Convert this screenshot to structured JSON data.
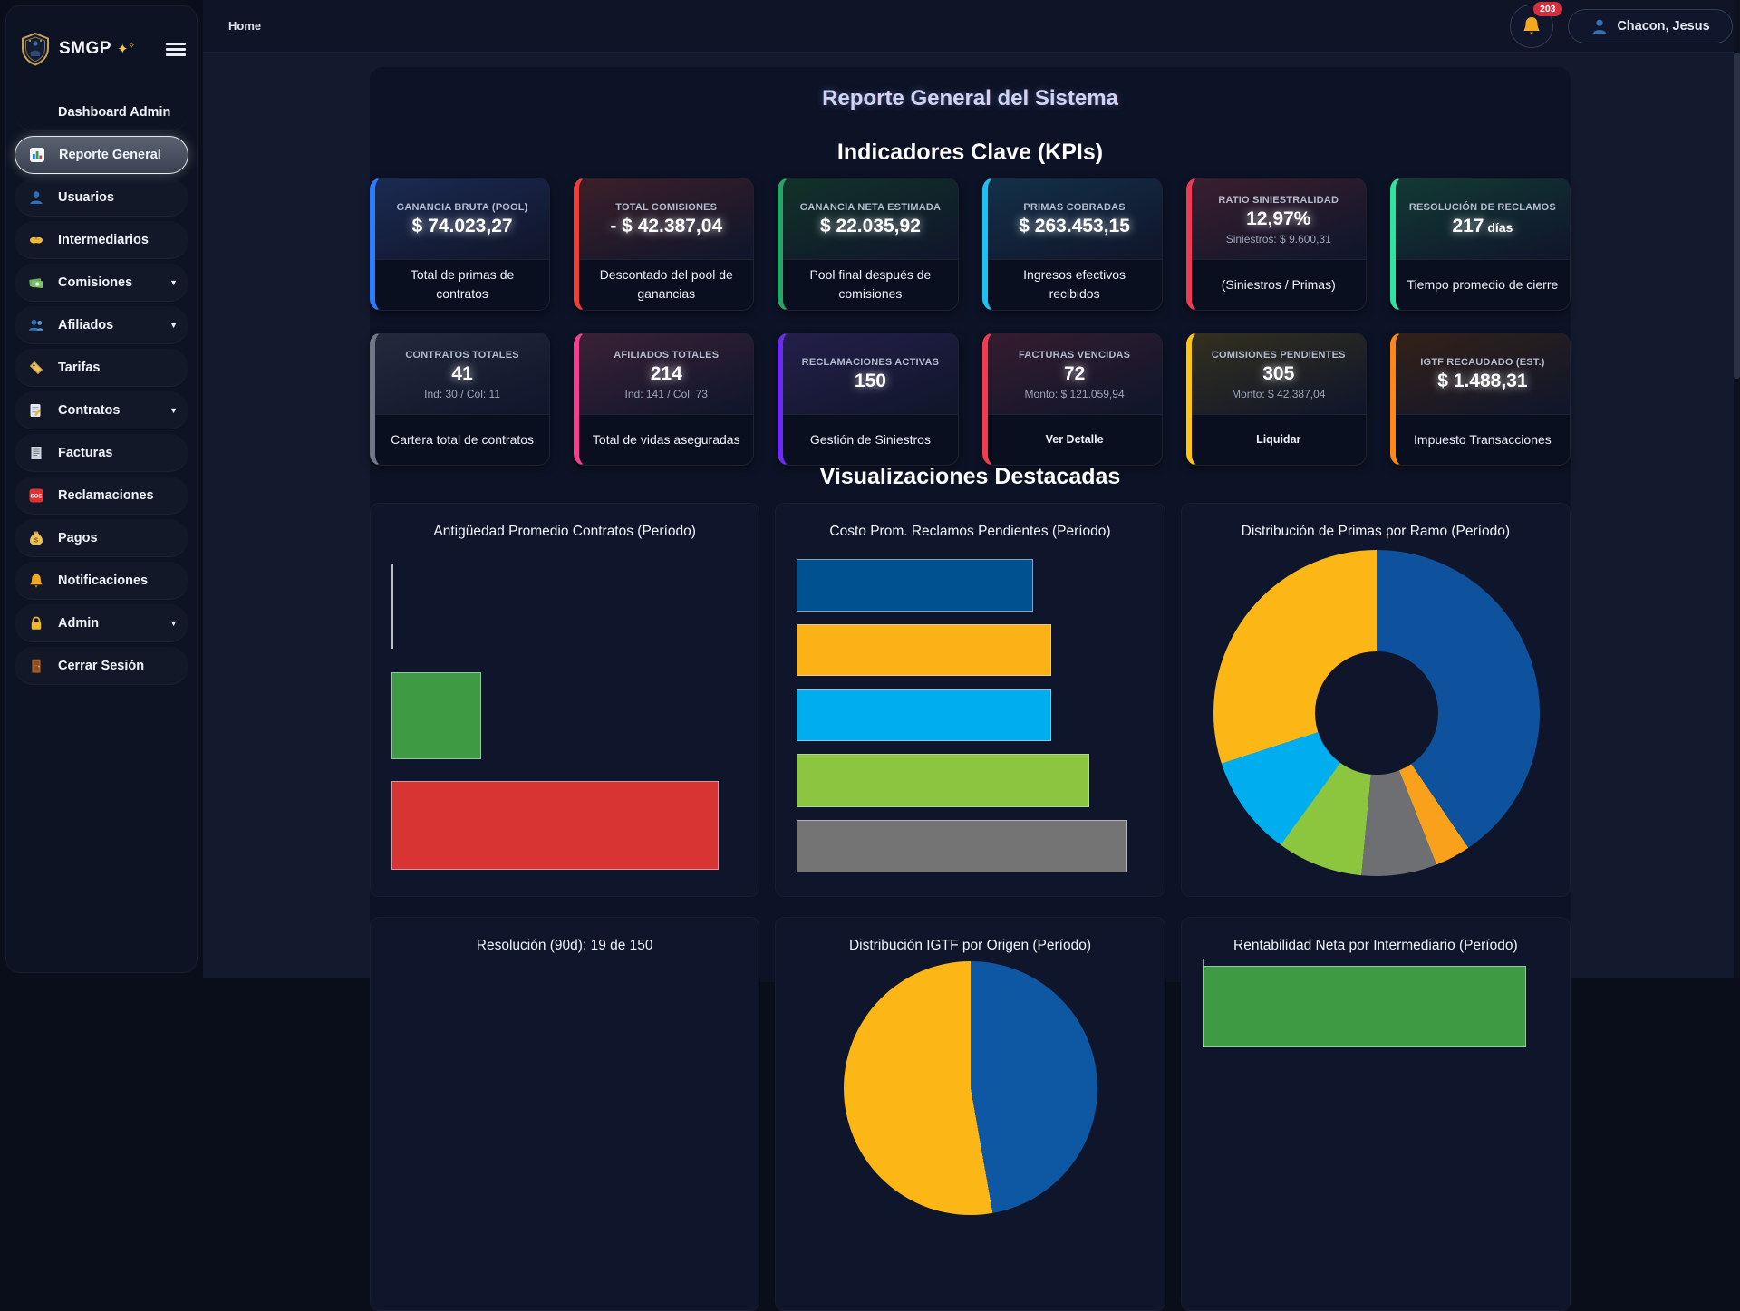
{
  "app": {
    "name": "SMGP",
    "sparkle_1": "✦",
    "sparkle_2": "✧"
  },
  "topbar": {
    "breadcrumb": "Home",
    "notifications_count": "203",
    "user_name": "Chacon, Jesus"
  },
  "sidebar": {
    "items": [
      {
        "label": "Dashboard Admin",
        "icon": "",
        "active": false,
        "chevron": false
      },
      {
        "label": "Reporte General",
        "icon": "bar-chart-icon",
        "active": true,
        "chevron": false
      },
      {
        "label": "Usuarios",
        "icon": "user-icon",
        "active": false,
        "chevron": false
      },
      {
        "label": "Intermediarios",
        "icon": "handshake-icon",
        "active": false,
        "chevron": false
      },
      {
        "label": "Comisiones",
        "icon": "money-bill-icon",
        "active": false,
        "chevron": true
      },
      {
        "label": "Afiliados",
        "icon": "users-icon",
        "active": false,
        "chevron": true
      },
      {
        "label": "Tarifas",
        "icon": "tag-icon",
        "active": false,
        "chevron": false
      },
      {
        "label": "Contratos",
        "icon": "contract-icon",
        "active": false,
        "chevron": true
      },
      {
        "label": "Facturas",
        "icon": "invoice-icon",
        "active": false,
        "chevron": false
      },
      {
        "label": "Reclamaciones",
        "icon": "sos-icon",
        "active": false,
        "chevron": false
      },
      {
        "label": "Pagos",
        "icon": "money-bag-icon",
        "active": false,
        "chevron": false
      },
      {
        "label": "Notificaciones",
        "icon": "bell-icon",
        "active": false,
        "chevron": false
      },
      {
        "label": "Admin",
        "icon": "lock-icon",
        "active": false,
        "chevron": true
      },
      {
        "label": "Cerrar Sesión",
        "icon": "door-icon",
        "active": false,
        "chevron": false
      }
    ]
  },
  "page": {
    "title": "Reporte General del Sistema",
    "kpi_heading": "Indicadores Clave (KPIs)",
    "viz_heading": "Visualizaciones Destacadas"
  },
  "kpis": [
    {
      "label": "GANANCIA BRUTA (POOL)",
      "value": "$ 74.023,27",
      "suffix": "",
      "sub": "",
      "desc": "Total de primas de contratos",
      "desc_is_button": false,
      "accent": "#2b7bff",
      "tint": "#1b2a52"
    },
    {
      "label": "TOTAL COMISIONES",
      "value": "- $ 42.387,04",
      "suffix": "",
      "sub": "",
      "desc": "Descontado del pool de ganancias",
      "desc_is_button": false,
      "accent": "#e8413d",
      "tint": "#3c1f29"
    },
    {
      "label": "GANANCIA NETA ESTIMADA",
      "value": "$ 22.035,92",
      "suffix": "",
      "sub": "",
      "desc": "Pool final después de comisiones",
      "desc_is_button": false,
      "accent": "#27a567",
      "tint": "#113229"
    },
    {
      "label": "PRIMAS COBRADAS",
      "value": "$ 263.453,15",
      "suffix": "",
      "sub": "",
      "desc": "Ingresos efectivos recibidos",
      "desc_is_button": false,
      "accent": "#19c2f2",
      "tint": "#133048"
    },
    {
      "label": "RATIO SINIESTRALIDAD",
      "value": "12,97%",
      "suffix": "",
      "sub": "Siniestros: $ 9.600,31",
      "desc": "(Siniestros / Primas)",
      "desc_is_button": false,
      "accent": "#ef3a52",
      "tint": "#3a1e2e"
    },
    {
      "label": "RESOLUCIÓN DE RECLAMOS",
      "value": "217",
      "suffix": " días",
      "sub": "",
      "desc": "Tiempo promedio de cierre",
      "desc_is_button": false,
      "accent": "#2fe3a0",
      "tint": "#123a34"
    },
    {
      "label": "CONTRATOS TOTALES",
      "value": "41",
      "suffix": "",
      "sub": "Ind: 30 / Col: 11",
      "desc": "Cartera total de contratos",
      "desc_is_button": false,
      "accent": "#6f7685",
      "tint": "#242a3c"
    },
    {
      "label": "AFILIADOS TOTALES",
      "value": "214",
      "suffix": "",
      "sub": "Ind: 141 / Col: 73",
      "desc": "Total de vidas aseguradas",
      "desc_is_button": false,
      "accent": "#f0408f",
      "tint": "#3a2136"
    },
    {
      "label": "RECLAMACIONES ACTIVAS",
      "value": "150",
      "suffix": "",
      "sub": "",
      "desc": "Gestión de Siniestros",
      "desc_is_button": false,
      "accent": "#6b2bf2",
      "tint": "#241f4a"
    },
    {
      "label": "FACTURAS VENCIDAS",
      "value": "72",
      "suffix": "",
      "sub": "Monto: $ 121.059,94",
      "desc": "Ver Detalle",
      "desc_is_button": true,
      "accent": "#f23b4f",
      "tint": "#351c2f"
    },
    {
      "label": "COMISIONES PENDIENTES",
      "value": "305",
      "suffix": "",
      "sub": "Monto: $ 42.387,04",
      "desc": "Liquidar",
      "desc_is_button": true,
      "accent": "#ffc410",
      "tint": "#33301e"
    },
    {
      "label": "IGTF RECAUDADO (EST.)",
      "value": "$ 1.488,31",
      "suffix": "",
      "sub": "",
      "desc": "Impuesto Transacciones",
      "desc_is_button": false,
      "accent": "#ff8718",
      "tint": "#332118"
    }
  ],
  "chart_data": [
    {
      "type": "bar",
      "orientation": "horizontal",
      "title": "Antigüedad Promedio Contratos (Período)",
      "xlabel": "",
      "ylabel": "",
      "grid": false,
      "legend": "none",
      "bars": [
        {
          "color": "#b9bdc6",
          "width_pct": 0.5
        },
        {
          "color": "#3f9b43",
          "width_pct": 26
        },
        {
          "color": "#d93434",
          "width_pct": 94.5
        }
      ]
    },
    {
      "type": "bar",
      "orientation": "horizontal",
      "title": "Costo Prom. Reclamos Pendientes (Período)",
      "xlabel": "",
      "ylabel": "",
      "grid": false,
      "legend": "none",
      "bars": [
        {
          "color": "#00518f",
          "width_pct": 68
        },
        {
          "color": "#fbb217",
          "width_pct": 73
        },
        {
          "color": "#00aeef",
          "width_pct": 73
        },
        {
          "color": "#8cc640",
          "width_pct": 84
        },
        {
          "color": "#747474",
          "width_pct": 95
        }
      ]
    },
    {
      "type": "pie",
      "subtype": "donut",
      "title": "Distribución de Primas por Ramo (Período)",
      "hole_ratio": 0.38,
      "legend": "none",
      "slices": [
        {
          "color": "#0e519c",
          "pct": 40.5
        },
        {
          "color": "#f9a11b",
          "pct": 3.5
        },
        {
          "color": "#6d6f72",
          "pct": 7.5
        },
        {
          "color": "#8cc63f",
          "pct": 8.5
        },
        {
          "color": "#00aeef",
          "pct": 10.0
        },
        {
          "color": "#fcb615",
          "pct": 30.0
        }
      ]
    },
    {
      "type": "bar",
      "title": "Resolución (90d): 19 de 150",
      "note": "partially visible at viewport bottom",
      "bars": []
    },
    {
      "type": "pie",
      "title": "Distribución IGTF por Origen (Período)",
      "note": "partially visible at viewport bottom",
      "slices": [
        {
          "color": "#0d57a3",
          "pct": 47
        },
        {
          "color": "#fcb615",
          "pct": 53
        }
      ]
    },
    {
      "type": "bar",
      "orientation": "horizontal",
      "title": "Rentabilidad Neta por Intermediario (Período)",
      "note": "partially visible at viewport bottom",
      "bars": [
        {
          "color": "#3f9b43",
          "width_pct": 93
        }
      ]
    }
  ]
}
